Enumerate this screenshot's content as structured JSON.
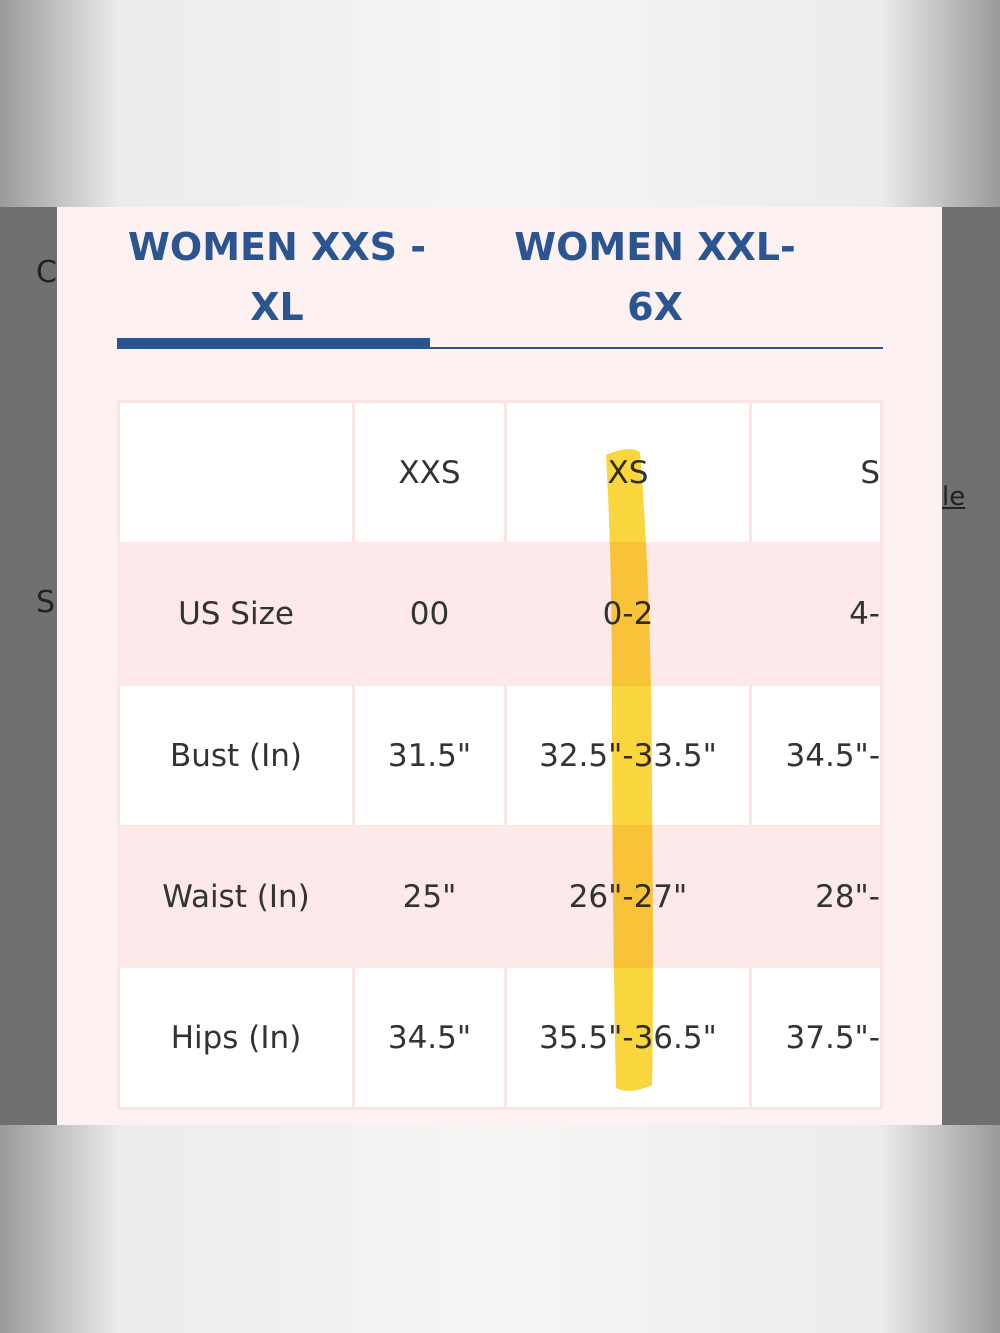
{
  "background": {
    "fragments": [
      "C",
      "S",
      "le"
    ]
  },
  "tabs": [
    "WOMEN XXS - XL",
    "WOMEN XXL-6X"
  ],
  "table": {
    "header": [
      "XXS",
      "XS",
      "S"
    ],
    "rows": [
      [
        "US Size",
        "00",
        "0-2",
        "4-"
      ],
      [
        "Bust (In)",
        "31.5\"",
        "32.5\"-33.5\"",
        "34.5\"-"
      ],
      [
        "Waist (In)",
        "25\"",
        "26\"-27\"",
        "28\"-"
      ],
      [
        "Hips (In)",
        "34.5\"",
        "35.5\"-36.5\"",
        "37.5\"-"
      ]
    ]
  }
}
